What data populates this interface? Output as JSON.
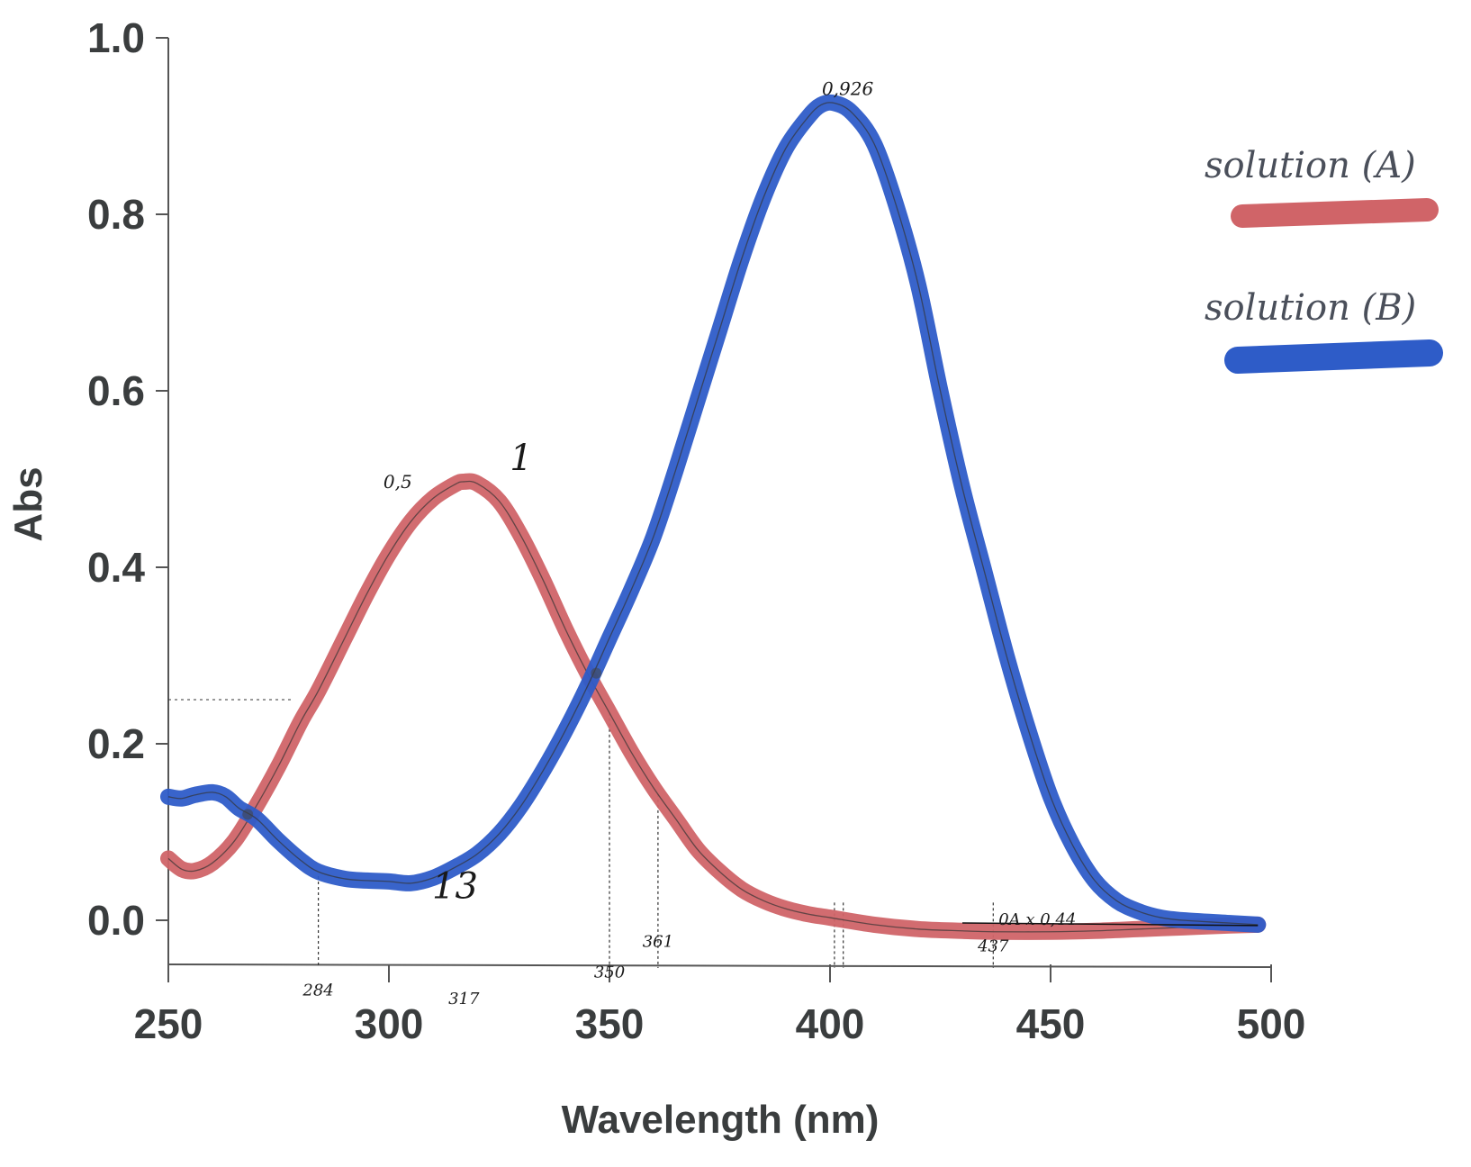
{
  "chart_data": {
    "type": "line",
    "title": "",
    "xlabel": "Wavelength (nm)",
    "ylabel": "Abs",
    "xlim": [
      250,
      500
    ],
    "ylim": [
      -0.05,
      1.0
    ],
    "xticks": [
      250,
      300,
      350,
      400,
      450,
      500
    ],
    "xtick_labels": [
      "250",
      "300",
      "350",
      "400",
      "450",
      "500"
    ],
    "yticks": [
      0.0,
      0.2,
      0.4,
      0.6,
      0.8,
      1.0
    ],
    "ytick_labels": [
      "0.0",
      "0.2",
      "0.4",
      "0.6",
      "0.8",
      "1.0"
    ],
    "grid": false,
    "legend_position": "top-right",
    "series": [
      {
        "name": "solution (A)",
        "color": "#d06468",
        "x": [
          250,
          253,
          256,
          260,
          265,
          270,
          275,
          280,
          284,
          290,
          295,
          300,
          305,
          310,
          315,
          317,
          320,
          325,
          330,
          335,
          340,
          345,
          350,
          355,
          360,
          365,
          370,
          375,
          380,
          385,
          390,
          395,
          400,
          410,
          420,
          430,
          437,
          450,
          460,
          470,
          480,
          490,
          497
        ],
        "y": [
          0.07,
          0.058,
          0.056,
          0.065,
          0.09,
          0.13,
          0.175,
          0.225,
          0.26,
          0.32,
          0.37,
          0.415,
          0.452,
          0.478,
          0.494,
          0.497,
          0.495,
          0.475,
          0.435,
          0.385,
          0.33,
          0.28,
          0.235,
          0.19,
          0.15,
          0.115,
          0.08,
          0.055,
          0.035,
          0.022,
          0.013,
          0.007,
          0.003,
          -0.005,
          -0.01,
          -0.012,
          -0.013,
          -0.013,
          -0.012,
          -0.01,
          -0.008,
          -0.006,
          -0.005
        ]
      },
      {
        "name": "solution (B)",
        "color": "#2e5cc8",
        "x": [
          250,
          253,
          256,
          260,
          263,
          266,
          270,
          275,
          280,
          284,
          290,
          295,
          300,
          305,
          310,
          315,
          320,
          325,
          330,
          335,
          340,
          345,
          350,
          355,
          360,
          365,
          370,
          375,
          380,
          385,
          390,
          395,
          398,
          401,
          405,
          410,
          415,
          420,
          425,
          430,
          435,
          440,
          445,
          450,
          455,
          460,
          465,
          470,
          475,
          480,
          490,
          497
        ],
        "y": [
          0.14,
          0.138,
          0.142,
          0.145,
          0.14,
          0.127,
          0.115,
          0.09,
          0.068,
          0.055,
          0.047,
          0.045,
          0.044,
          0.042,
          0.048,
          0.06,
          0.075,
          0.098,
          0.13,
          0.17,
          0.215,
          0.265,
          0.32,
          0.375,
          0.435,
          0.51,
          0.59,
          0.67,
          0.75,
          0.82,
          0.875,
          0.91,
          0.924,
          0.926,
          0.915,
          0.88,
          0.81,
          0.72,
          0.6,
          0.49,
          0.395,
          0.3,
          0.215,
          0.14,
          0.085,
          0.045,
          0.022,
          0.01,
          0.003,
          0.0,
          -0.003,
          -0.005
        ]
      }
    ],
    "annotations": [
      {
        "text": "0,926",
        "x": 404,
        "y": 0.935,
        "kind": "peak-value"
      },
      {
        "text": "0,5",
        "x": 302,
        "y": 0.49,
        "kind": "peak-value"
      },
      {
        "text": "1",
        "x": 330,
        "y": 0.51,
        "kind": "spectrum-index"
      },
      {
        "text": "13",
        "x": 315,
        "y": 0.025,
        "kind": "spectrum-index"
      },
      {
        "text": "284",
        "x": 284,
        "y": -0.085,
        "kind": "wavelength-marker"
      },
      {
        "text": "317",
        "x": 317,
        "y": -0.095,
        "kind": "wavelength-marker"
      },
      {
        "text": "350",
        "x": 350,
        "y": -0.065,
        "kind": "wavelength-marker"
      },
      {
        "text": "361",
        "x": 361,
        "y": -0.03,
        "kind": "wavelength-marker"
      },
      {
        "text": "437",
        "x": 437,
        "y": -0.035,
        "kind": "wavelength-marker"
      },
      {
        "text": "0A x 0,44",
        "x": 447,
        "y": -0.005,
        "kind": "note"
      }
    ],
    "isosbestic_points": [
      {
        "x": 268,
        "y": 0.12
      },
      {
        "x": 347,
        "y": 0.28
      }
    ],
    "vertical_markers": [
      284,
      350,
      361,
      401,
      403,
      437
    ]
  }
}
